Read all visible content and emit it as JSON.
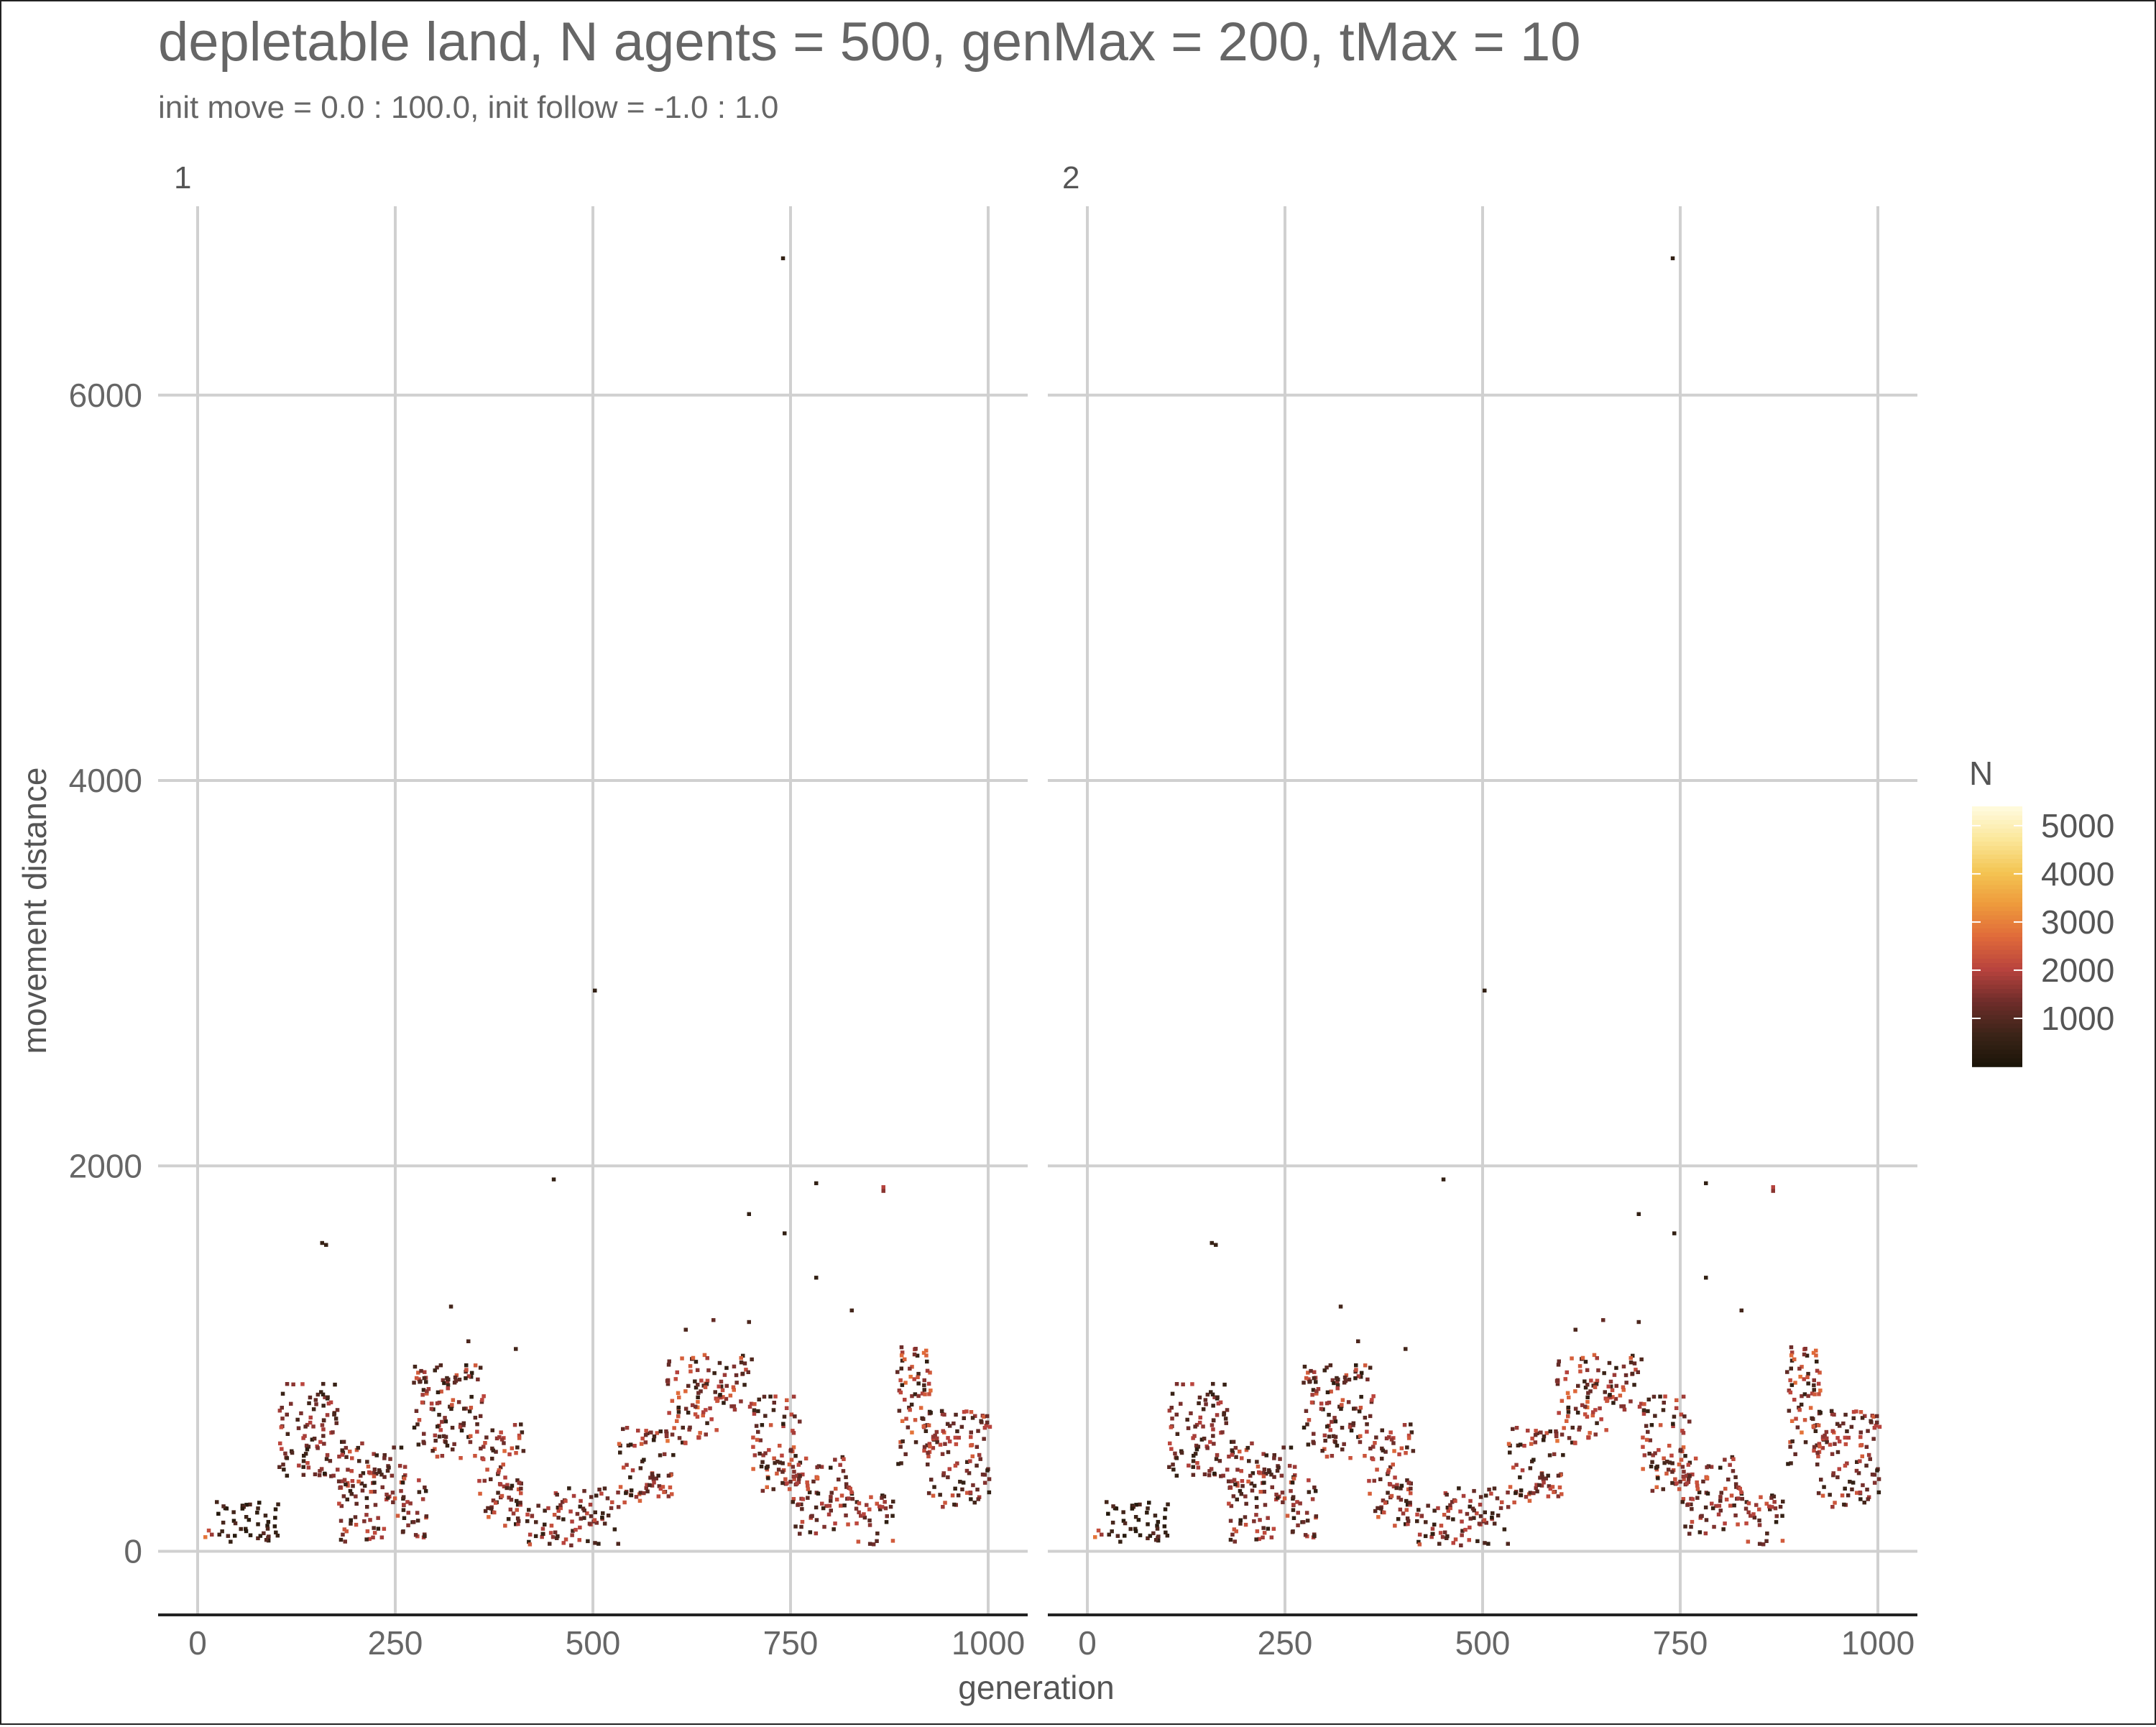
{
  "chart_data": {
    "type": "heatmap",
    "title": "depletable land, N agents = 500, genMax = 200, tMax = 10",
    "subtitle": "init move = 0.0 : 100.0, init follow = -1.0 : 1.0",
    "xlabel": "generation",
    "ylabel": "movement distance",
    "xlim": [
      -50,
      1050
    ],
    "ylim": [
      -330,
      6980
    ],
    "x_ticks": [
      0,
      250,
      500,
      750,
      1000
    ],
    "x_tick_labels": [
      "0",
      "250",
      "500",
      "750",
      "1000"
    ],
    "y_ticks": [
      0,
      2000,
      4000,
      6000
    ],
    "y_tick_labels": [
      "0",
      "2000",
      "4000",
      "6000"
    ],
    "grid": true,
    "legend": {
      "title": "N",
      "position": "right",
      "ticks": [
        1000,
        2000,
        3000,
        4000,
        5000
      ],
      "tick_labels": [
        "1000",
        "2000",
        "3000",
        "4000",
        "5000"
      ],
      "range": [
        0,
        5400
      ],
      "colors": [
        "#1a1408",
        "#3b2418",
        "#6e2d2a",
        "#b8433e",
        "#e06a3a",
        "#ee9a3c",
        "#f4c553",
        "#fbe79a",
        "#fffbe0"
      ]
    },
    "facets": [
      "1",
      "2"
    ],
    "tile_size": {
      "dx": 5,
      "dy": 20
    },
    "bands": [
      {
        "x": [
          0,
          20
        ],
        "y": [
          60,
          110
        ],
        "n": 2000
      },
      {
        "x": [
          20,
          100
        ],
        "y": [
          30,
          260
        ],
        "n": 600
      },
      {
        "x": [
          100,
          175
        ],
        "y": [
          380,
          870
        ],
        "n": 1200
      },
      {
        "x": [
          175,
          260
        ],
        "y": [
          40,
          560
        ],
        "n": 1300
      },
      {
        "x": [
          255,
          290
        ],
        "y": [
          50,
          380
        ],
        "n": 1300
      },
      {
        "x": [
          270,
          360
        ],
        "y": [
          470,
          960
        ],
        "n": 1300
      },
      {
        "x": [
          350,
          410
        ],
        "y": [
          120,
          650
        ],
        "n": 1400
      },
      {
        "x": [
          410,
          460
        ],
        "y": [
          20,
          230
        ],
        "n": 1300
      },
      {
        "x": [
          450,
          530
        ],
        "y": [
          20,
          320
        ],
        "n": 1200
      },
      {
        "x": [
          530,
          600
        ],
        "y": [
          240,
          640
        ],
        "n": 1400
      },
      {
        "x": [
          590,
          660
        ],
        "y": [
          550,
          1010
        ],
        "n": 1500
      },
      {
        "x": [
          655,
          700
        ],
        "y": [
          700,
          1010
        ],
        "n": 1400
      },
      {
        "x": [
          700,
          760
        ],
        "y": [
          300,
          800
        ],
        "n": 1400
      },
      {
        "x": [
          750,
          830
        ],
        "y": [
          80,
          480
        ],
        "n": 1400
      },
      {
        "x": [
          830,
          880
        ],
        "y": [
          20,
          280
        ],
        "n": 1300
      },
      {
        "x": [
          880,
          925
        ],
        "y": [
          400,
          1050
        ],
        "n": 1500
      },
      {
        "x": [
          920,
          1000
        ],
        "y": [
          220,
          720
        ],
        "n": 1400
      }
    ],
    "points": [
      {
        "x": 155,
        "y": 1590,
        "n": 600
      },
      {
        "x": 160,
        "y": 1580,
        "n": 600
      },
      {
        "x": 318,
        "y": 1260,
        "n": 800
      },
      {
        "x": 340,
        "y": 1080,
        "n": 900
      },
      {
        "x": 400,
        "y": 1040,
        "n": 800
      },
      {
        "x": 448,
        "y": 1920,
        "n": 500
      },
      {
        "x": 500,
        "y": 2900,
        "n": 500
      },
      {
        "x": 615,
        "y": 1140,
        "n": 900
      },
      {
        "x": 650,
        "y": 1190,
        "n": 1200
      },
      {
        "x": 695,
        "y": 1180,
        "n": 900
      },
      {
        "x": 695,
        "y": 1740,
        "n": 500
      },
      {
        "x": 738,
        "y": 6700,
        "n": 500
      },
      {
        "x": 740,
        "y": 1640,
        "n": 500
      },
      {
        "x": 780,
        "y": 1900,
        "n": 500
      },
      {
        "x": 780,
        "y": 1410,
        "n": 500
      },
      {
        "x": 825,
        "y": 1240,
        "n": 800
      },
      {
        "x": 865,
        "y": 1880,
        "n": 2000
      },
      {
        "x": 865,
        "y": 1860,
        "n": 1600
      }
    ]
  }
}
